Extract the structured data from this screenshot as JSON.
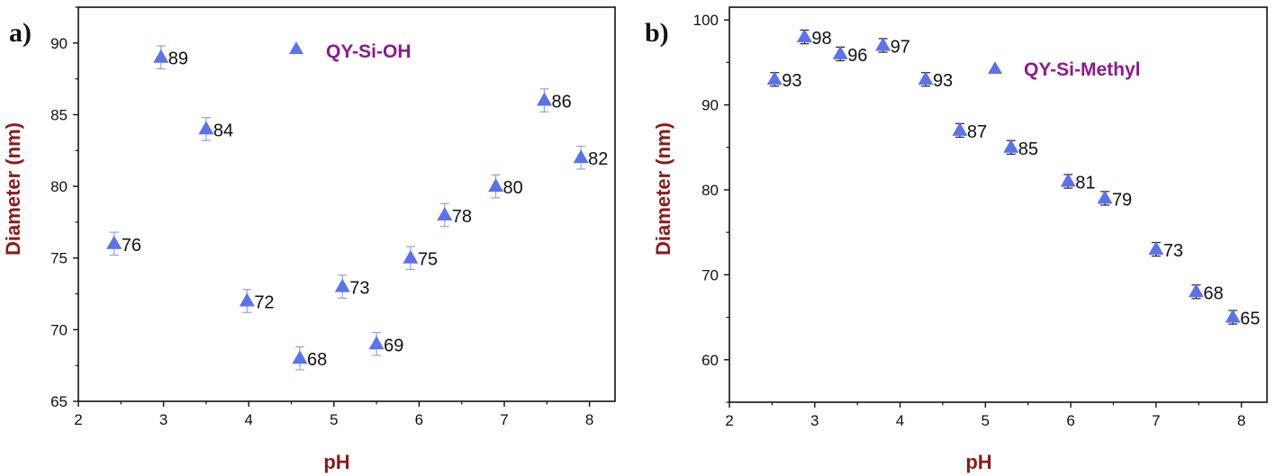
{
  "chart_data": [
    {
      "type": "scatter",
      "panel_label": "a)",
      "legend": "QY-Si-OH",
      "xlabel": "pH",
      "ylabel": "Diameter (nm)",
      "xlim": [
        2,
        8.3
      ],
      "ylim": [
        65,
        92.5
      ],
      "xticks": [
        2,
        3,
        4,
        5,
        6,
        7,
        8
      ],
      "yticks": [
        65,
        70,
        75,
        80,
        85,
        90
      ],
      "error": 0.8,
      "marker_color": "#5b72ea",
      "error_color": "#8fa0ee",
      "points": [
        {
          "x": 2.42,
          "y": 76,
          "label": "76"
        },
        {
          "x": 2.97,
          "y": 89,
          "label": "89"
        },
        {
          "x": 3.5,
          "y": 84,
          "label": "84"
        },
        {
          "x": 3.98,
          "y": 72,
          "label": "72"
        },
        {
          "x": 4.6,
          "y": 68,
          "label": "68"
        },
        {
          "x": 5.1,
          "y": 73,
          "label": "73"
        },
        {
          "x": 5.5,
          "y": 69,
          "label": "69"
        },
        {
          "x": 5.9,
          "y": 75,
          "label": "75"
        },
        {
          "x": 6.3,
          "y": 78,
          "label": "78"
        },
        {
          "x": 6.9,
          "y": 80,
          "label": "80"
        },
        {
          "x": 7.47,
          "y": 86,
          "label": "86"
        },
        {
          "x": 7.9,
          "y": 82,
          "label": "82"
        }
      ]
    },
    {
      "type": "scatter",
      "panel_label": "b)",
      "legend": "QY-Si-Methyl",
      "xlabel": "pH",
      "ylabel": "Diameter (nm)",
      "xlim": [
        2,
        8.3
      ],
      "ylim": [
        55,
        101.5
      ],
      "xticks": [
        2,
        3,
        4,
        5,
        6,
        7,
        8
      ],
      "yticks": [
        60,
        70,
        80,
        90,
        100
      ],
      "error": 0.8,
      "marker_color": "#5b72ea",
      "error_color": "#222222",
      "points": [
        {
          "x": 2.53,
          "y": 93,
          "label": "93"
        },
        {
          "x": 2.88,
          "y": 98,
          "label": "98"
        },
        {
          "x": 3.3,
          "y": 96,
          "label": "96"
        },
        {
          "x": 3.8,
          "y": 97,
          "label": "97"
        },
        {
          "x": 4.3,
          "y": 93,
          "label": "93"
        },
        {
          "x": 4.7,
          "y": 87,
          "label": "87"
        },
        {
          "x": 5.3,
          "y": 85,
          "label": "85"
        },
        {
          "x": 5.97,
          "y": 81,
          "label": "81"
        },
        {
          "x": 6.4,
          "y": 79,
          "label": "79"
        },
        {
          "x": 7.0,
          "y": 73,
          "label": "73"
        },
        {
          "x": 7.47,
          "y": 68,
          "label": "68"
        },
        {
          "x": 7.9,
          "y": 65,
          "label": "65"
        }
      ]
    }
  ]
}
